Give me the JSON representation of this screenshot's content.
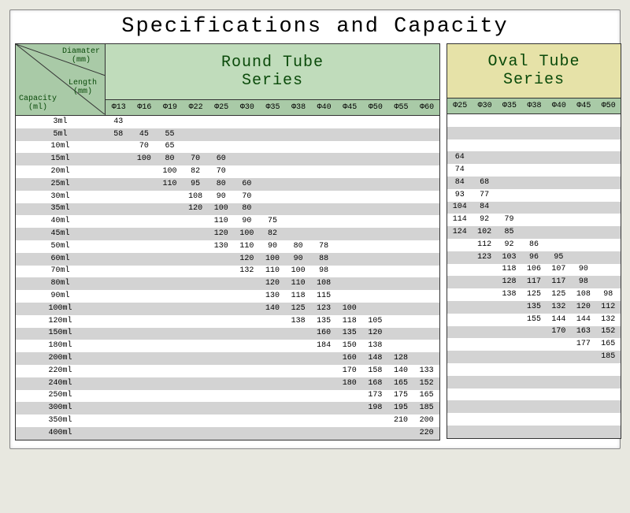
{
  "title": "Specifications and Capacity",
  "corner_labels": {
    "diameter": "Diamater\n(mm)",
    "length": "Length\n(mm)",
    "capacity": "Capacity\n(ml)"
  },
  "colors": {
    "header_corner_bg": "#a9caa7",
    "round_series_bg": "#c0dcbb",
    "oval_series_bg": "#e6e2a8",
    "stripe_a": "#ffffff",
    "stripe_b": "#d3d3d3",
    "text_green": "#0a4a0a"
  },
  "round": {
    "title": "Round Tube\nSeries",
    "diameters": [
      "Φ13",
      "Φ16",
      "Φ19",
      "Φ22",
      "Φ25",
      "Φ30",
      "Φ35",
      "Φ38",
      "Φ40",
      "Φ45",
      "Φ50",
      "Φ55",
      "Φ60"
    ]
  },
  "oval": {
    "title": "Oval Tube\nSeries",
    "diameters": [
      "Φ25",
      "Φ30",
      "Φ35",
      "Φ38",
      "Φ40",
      "Φ45",
      "Φ50"
    ]
  },
  "capacities": [
    "3ml",
    "5ml",
    "10ml",
    "15ml",
    "20ml",
    "25ml",
    "30ml",
    "35ml",
    "40ml",
    "45ml",
    "50ml",
    "60ml",
    "70ml",
    "80ml",
    "90ml",
    "100ml",
    "120ml",
    "150ml",
    "180ml",
    "200ml",
    "220ml",
    "240ml",
    "250ml",
    "300ml",
    "350ml",
    "400ml"
  ],
  "round_rows": [
    [
      "43",
      "",
      "",
      "",
      "",
      "",
      "",
      "",
      "",
      "",
      "",
      "",
      ""
    ],
    [
      "58",
      "45",
      "55",
      "",
      "",
      "",
      "",
      "",
      "",
      "",
      "",
      "",
      ""
    ],
    [
      "",
      "70",
      "65",
      "",
      "",
      "",
      "",
      "",
      "",
      "",
      "",
      "",
      ""
    ],
    [
      "",
      "100",
      "80",
      "70",
      "60",
      "",
      "",
      "",
      "",
      "",
      "",
      "",
      ""
    ],
    [
      "",
      "",
      "100",
      "82",
      "70",
      "",
      "",
      "",
      "",
      "",
      "",
      "",
      ""
    ],
    [
      "",
      "",
      "110",
      "95",
      "80",
      "60",
      "",
      "",
      "",
      "",
      "",
      "",
      ""
    ],
    [
      "",
      "",
      "",
      "108",
      "90",
      "70",
      "",
      "",
      "",
      "",
      "",
      "",
      ""
    ],
    [
      "",
      "",
      "",
      "120",
      "100",
      "80",
      "",
      "",
      "",
      "",
      "",
      "",
      ""
    ],
    [
      "",
      "",
      "",
      "",
      "110",
      "90",
      "75",
      "",
      "",
      "",
      "",
      "",
      ""
    ],
    [
      "",
      "",
      "",
      "",
      "120",
      "100",
      "82",
      "",
      "",
      "",
      "",
      "",
      ""
    ],
    [
      "",
      "",
      "",
      "",
      "130",
      "110",
      "90",
      "80",
      "78",
      "",
      "",
      "",
      ""
    ],
    [
      "",
      "",
      "",
      "",
      "",
      "120",
      "100",
      "90",
      "88",
      "",
      "",
      "",
      ""
    ],
    [
      "",
      "",
      "",
      "",
      "",
      "132",
      "110",
      "100",
      "98",
      "",
      "",
      "",
      ""
    ],
    [
      "",
      "",
      "",
      "",
      "",
      "",
      "120",
      "110",
      "108",
      "",
      "",
      "",
      ""
    ],
    [
      "",
      "",
      "",
      "",
      "",
      "",
      "130",
      "118",
      "115",
      "",
      "",
      "",
      ""
    ],
    [
      "",
      "",
      "",
      "",
      "",
      "",
      "140",
      "125",
      "123",
      "100",
      "",
      "",
      ""
    ],
    [
      "",
      "",
      "",
      "",
      "",
      "",
      "",
      "138",
      "135",
      "118",
      "105",
      "",
      ""
    ],
    [
      "",
      "",
      "",
      "",
      "",
      "",
      "",
      "",
      "160",
      "135",
      "120",
      "",
      ""
    ],
    [
      "",
      "",
      "",
      "",
      "",
      "",
      "",
      "",
      "184",
      "150",
      "138",
      "",
      ""
    ],
    [
      "",
      "",
      "",
      "",
      "",
      "",
      "",
      "",
      "",
      "160",
      "148",
      "128",
      ""
    ],
    [
      "",
      "",
      "",
      "",
      "",
      "",
      "",
      "",
      "",
      "170",
      "158",
      "140",
      "133"
    ],
    [
      "",
      "",
      "",
      "",
      "",
      "",
      "",
      "",
      "",
      "180",
      "168",
      "165",
      "152"
    ],
    [
      "",
      "",
      "",
      "",
      "",
      "",
      "",
      "",
      "",
      "",
      "173",
      "175",
      "165"
    ],
    [
      "",
      "",
      "",
      "",
      "",
      "",
      "",
      "",
      "",
      "",
      "198",
      "195",
      "185"
    ],
    [
      "",
      "",
      "",
      "",
      "",
      "",
      "",
      "",
      "",
      "",
      "",
      "210",
      "200"
    ],
    [
      "",
      "",
      "",
      "",
      "",
      "",
      "",
      "",
      "",
      "",
      "",
      "",
      "220"
    ]
  ],
  "oval_rows": [
    [
      "",
      "",
      "",
      "",
      "",
      "",
      ""
    ],
    [
      "",
      "",
      "",
      "",
      "",
      "",
      ""
    ],
    [
      "",
      "",
      "",
      "",
      "",
      "",
      ""
    ],
    [
      "64",
      "",
      "",
      "",
      "",
      "",
      ""
    ],
    [
      "74",
      "",
      "",
      "",
      "",
      "",
      ""
    ],
    [
      "84",
      "68",
      "",
      "",
      "",
      "",
      ""
    ],
    [
      "93",
      "77",
      "",
      "",
      "",
      "",
      ""
    ],
    [
      "104",
      "84",
      "",
      "",
      "",
      "",
      ""
    ],
    [
      "114",
      "92",
      "79",
      "",
      "",
      "",
      ""
    ],
    [
      "124",
      "102",
      "85",
      "",
      "",
      "",
      ""
    ],
    [
      "",
      "112",
      "92",
      "86",
      "",
      "",
      ""
    ],
    [
      "",
      "123",
      "103",
      "96",
      "95",
      "",
      ""
    ],
    [
      "",
      "",
      "118",
      "106",
      "107",
      "90",
      ""
    ],
    [
      "",
      "",
      "128",
      "117",
      "117",
      "98",
      ""
    ],
    [
      "",
      "",
      "138",
      "125",
      "125",
      "108",
      "98"
    ],
    [
      "",
      "",
      "",
      "135",
      "132",
      "120",
      "112"
    ],
    [
      "",
      "",
      "",
      "155",
      "144",
      "144",
      "132"
    ],
    [
      "",
      "",
      "",
      "",
      "170",
      "163",
      "152"
    ],
    [
      "",
      "",
      "",
      "",
      "",
      "177",
      "165"
    ],
    [
      "",
      "",
      "",
      "",
      "",
      "",
      "185"
    ],
    [
      "",
      "",
      "",
      "",
      "",
      "",
      ""
    ],
    [
      "",
      "",
      "",
      "",
      "",
      "",
      ""
    ],
    [
      "",
      "",
      "",
      "",
      "",
      "",
      ""
    ],
    [
      "",
      "",
      "",
      "",
      "",
      "",
      ""
    ],
    [
      "",
      "",
      "",
      "",
      "",
      "",
      ""
    ],
    [
      "",
      "",
      "",
      "",
      "",
      "",
      ""
    ]
  ]
}
